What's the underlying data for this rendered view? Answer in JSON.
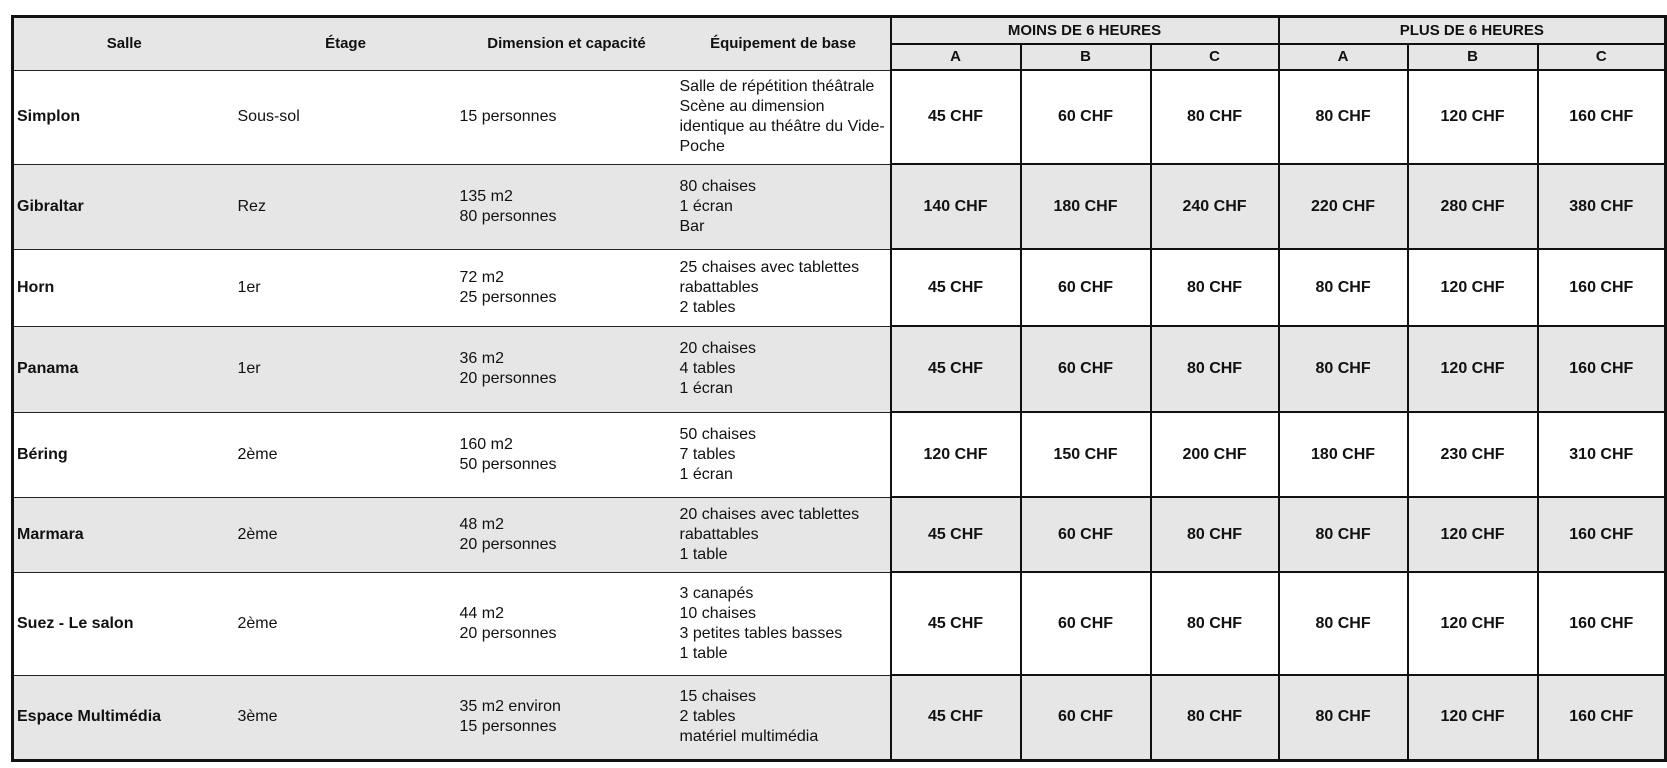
{
  "headers": {
    "salle": "Salle",
    "etage": "Étage",
    "dimension": "Dimension et capacité",
    "equipement": "Équipement de base",
    "group_less": "MOINS DE 6 HEURES",
    "group_more": "PLUS DE 6 HEURES",
    "sub": [
      "A",
      "B",
      "C",
      "A",
      "B",
      "C"
    ]
  },
  "rows": [
    {
      "salle": "Simplon",
      "etage": "Sous-sol",
      "dimension": [
        "15 personnes"
      ],
      "equipement": [
        "Salle de répétition théâtrale",
        "Scène au dimension",
        "identique au théâtre du Vide-",
        "Poche"
      ],
      "prices": [
        "45 CHF",
        "60 CHF",
        "80 CHF",
        "80 CHF",
        "120 CHF",
        "160 CHF"
      ]
    },
    {
      "salle": "Gibraltar",
      "etage": "Rez",
      "dimension": [
        "135 m2",
        "80 personnes"
      ],
      "equipement": [
        "80 chaises",
        "1 écran",
        "Bar"
      ],
      "prices": [
        "140 CHF",
        "180 CHF",
        "240 CHF",
        "220 CHF",
        "280 CHF",
        "380 CHF"
      ]
    },
    {
      "salle": "Horn",
      "etage": "1er",
      "dimension": [
        "72 m2",
        "25 personnes"
      ],
      "equipement": [
        "25 chaises avec tablettes",
        "rabattables",
        "2 tables"
      ],
      "prices": [
        "45 CHF",
        "60 CHF",
        "80 CHF",
        "80 CHF",
        "120 CHF",
        "160 CHF"
      ]
    },
    {
      "salle": "Panama",
      "etage": "1er",
      "dimension": [
        "36 m2",
        "20 personnes"
      ],
      "equipement": [
        "20 chaises",
        "4 tables",
        "1 écran"
      ],
      "prices": [
        "45 CHF",
        "60 CHF",
        "80 CHF",
        "80 CHF",
        "120 CHF",
        "160 CHF"
      ]
    },
    {
      "salle": "Béring",
      "etage": "2ème",
      "dimension": [
        "160 m2",
        "50 personnes"
      ],
      "equipement": [
        "50 chaises",
        "7 tables",
        "1 écran"
      ],
      "prices": [
        "120 CHF",
        "150 CHF",
        "200 CHF",
        "180 CHF",
        "230 CHF",
        "310 CHF"
      ]
    },
    {
      "salle": "Marmara",
      "etage": "2ème",
      "dimension": [
        "48 m2",
        "20 personnes"
      ],
      "equipement": [
        "20 chaises avec tablettes",
        "rabattables",
        "1 table"
      ],
      "prices": [
        "45 CHF",
        "60 CHF",
        "80 CHF",
        "80 CHF",
        "120 CHF",
        "160 CHF"
      ]
    },
    {
      "salle": "Suez - Le salon",
      "etage": "2ème",
      "dimension": [
        "44 m2",
        "20 personnes"
      ],
      "equipement": [
        "3 canapés",
        "10 chaises",
        "3 petites tables basses",
        "1 table"
      ],
      "prices": [
        "45 CHF",
        "60 CHF",
        "80 CHF",
        "80 CHF",
        "120 CHF",
        "160 CHF"
      ]
    },
    {
      "salle": "Espace Multimédia",
      "etage": "3ème",
      "dimension": [
        "35 m2 environ",
        "15 personnes"
      ],
      "equipement": [
        "15 chaises",
        "2 tables",
        "matériel multimédia"
      ],
      "prices": [
        "45 CHF",
        "60 CHF",
        "80 CHF",
        "80 CHF",
        "120 CHF",
        "160 CHF"
      ]
    }
  ]
}
